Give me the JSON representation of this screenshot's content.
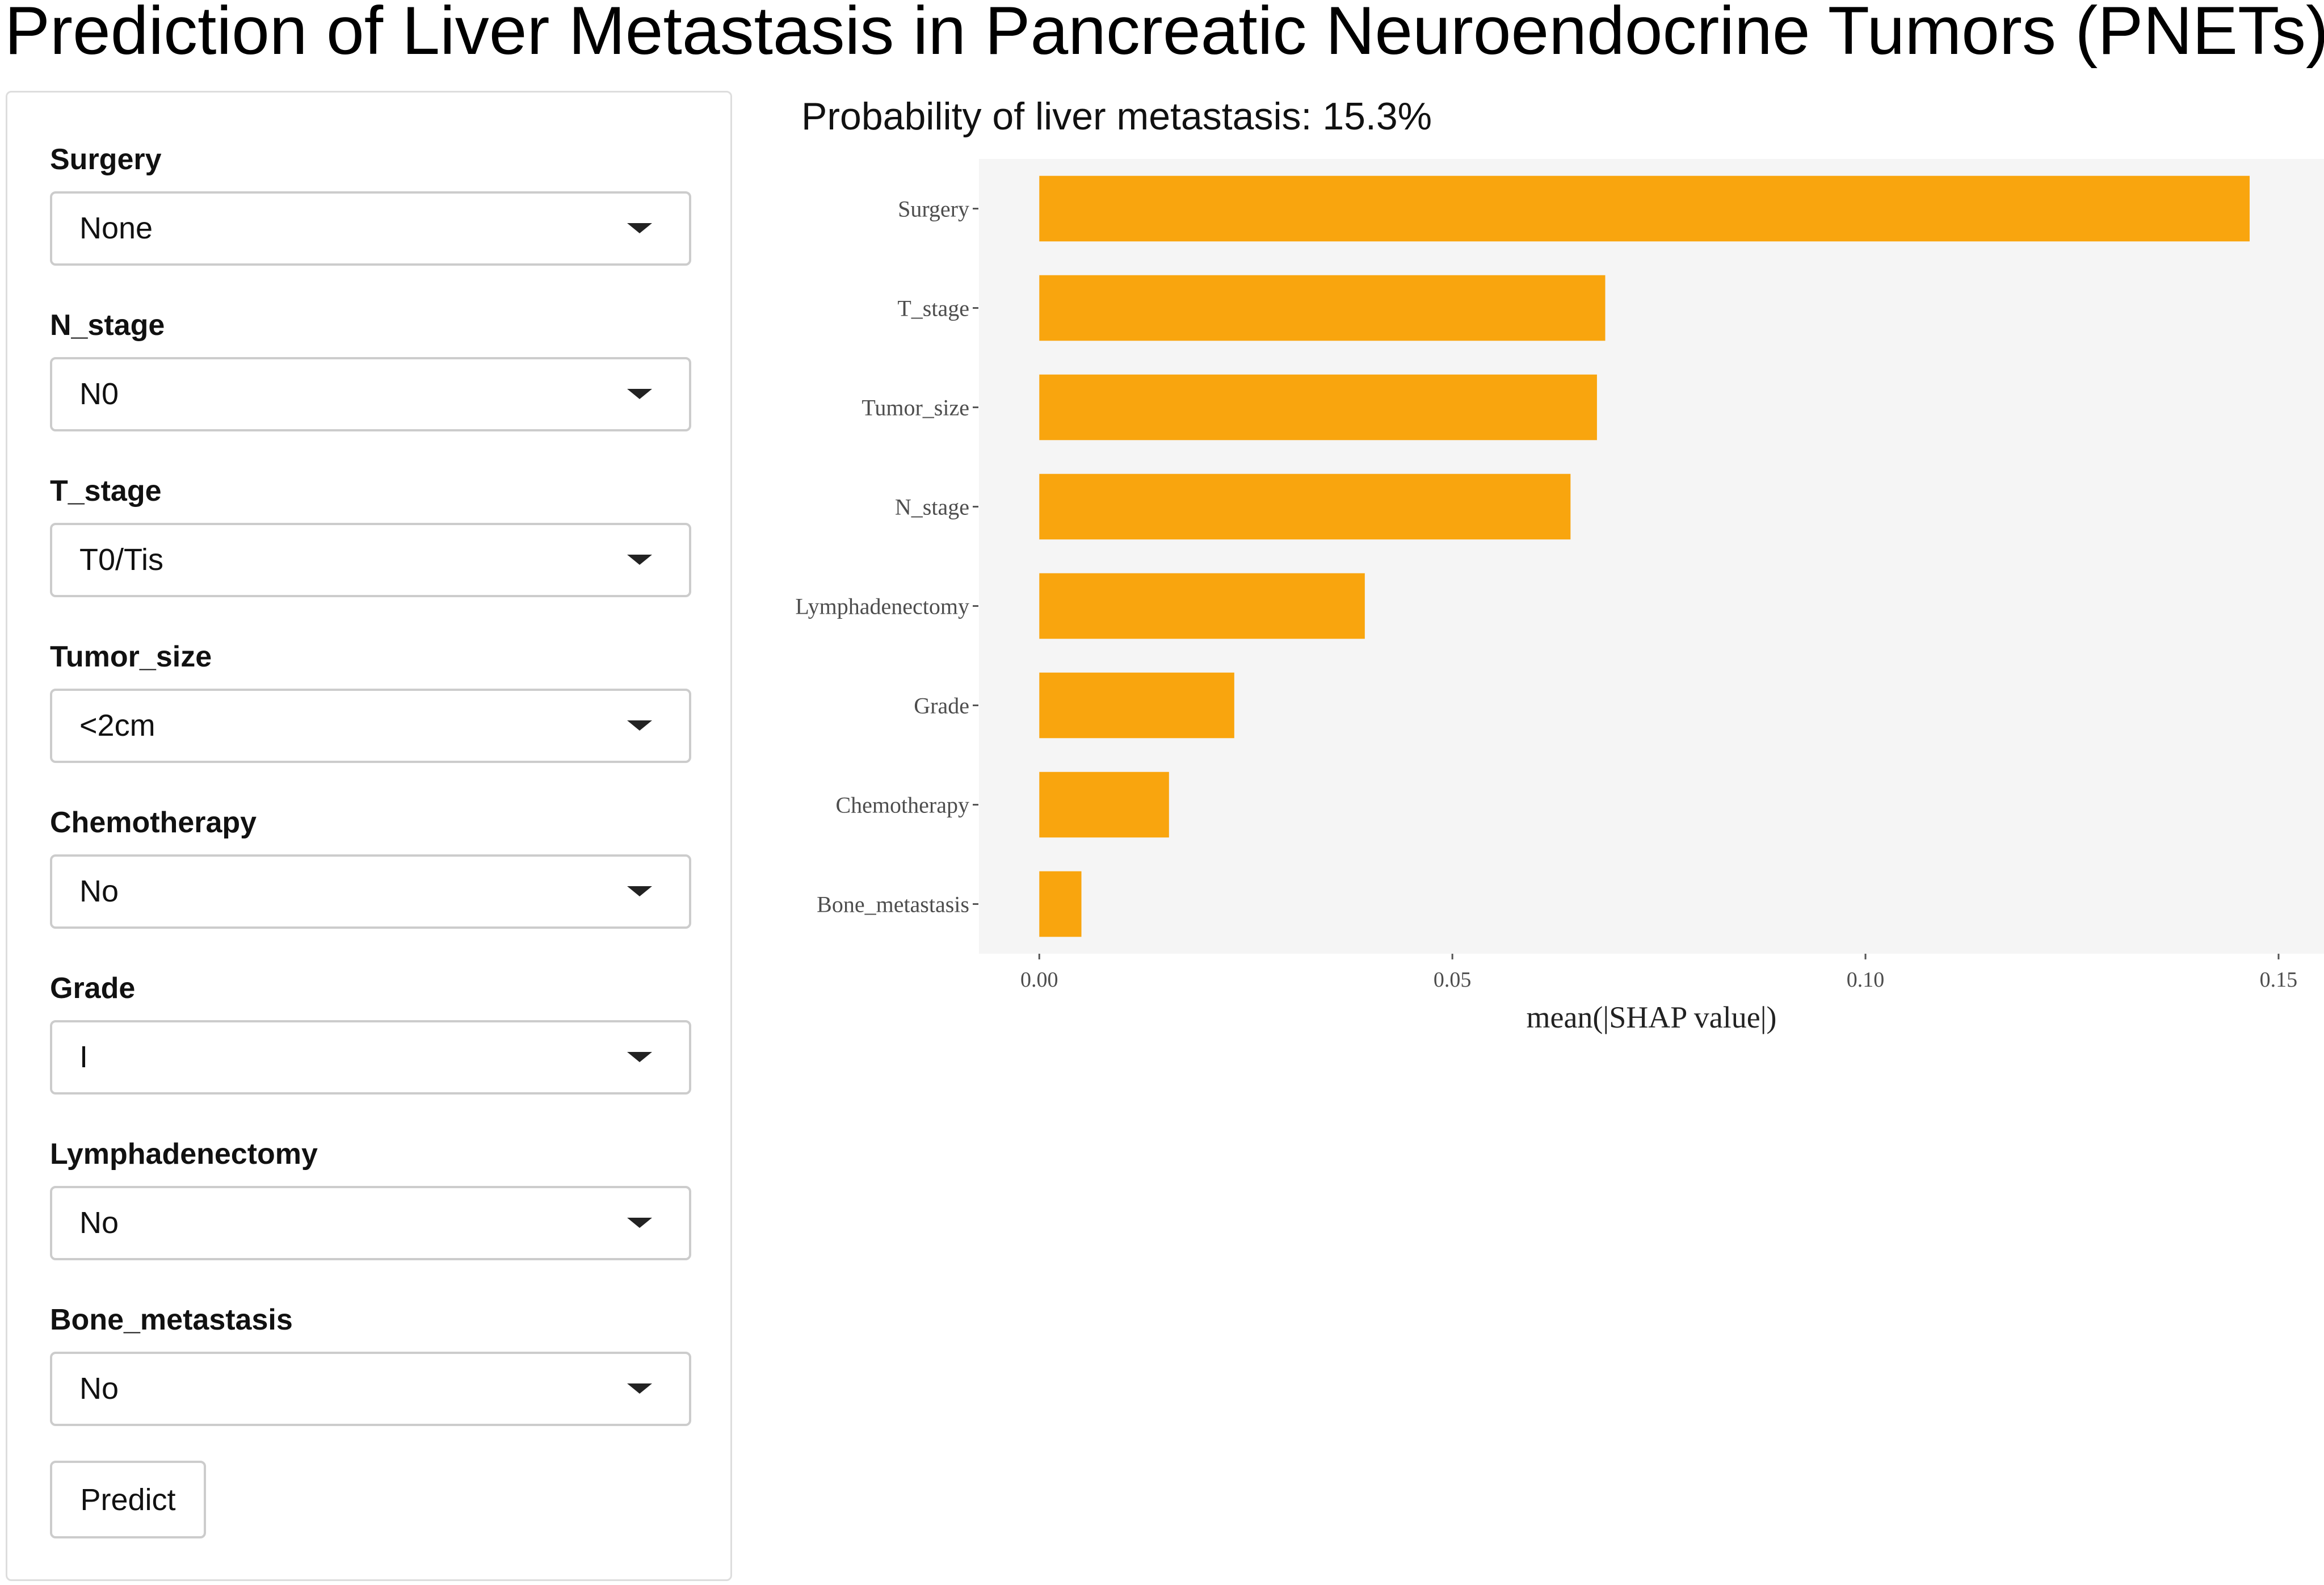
{
  "app": {
    "title": "Prediction of Liver Metastasis in Pancreatic Neuroendocrine Tumors (PNETs)"
  },
  "sidebar": {
    "fields": [
      {
        "label": "Surgery",
        "value": "None"
      },
      {
        "label": "N_stage",
        "value": "N0"
      },
      {
        "label": "T_stage",
        "value": "T0/Tis"
      },
      {
        "label": "Tumor_size",
        "value": "<2cm"
      },
      {
        "label": "Chemotherapy",
        "value": "No"
      },
      {
        "label": "Grade",
        "value": "I"
      },
      {
        "label": "Lymphadenectomy",
        "value": "No"
      },
      {
        "label": "Bone_metastasis",
        "value": "No"
      }
    ],
    "predict_label": "Predict"
  },
  "result": {
    "probability_text": "Probability of liver metastasis: 15.3%"
  },
  "chart_data": {
    "type": "bar",
    "orientation": "horizontal",
    "categories": [
      "Surgery",
      "T_stage",
      "Tumor_size",
      "N_stage",
      "Lymphadenectomy",
      "Grade",
      "Chemotherapy",
      "Bone_metastasis"
    ],
    "values": [
      0.1465,
      0.0685,
      0.0675,
      0.0643,
      0.0394,
      0.0236,
      0.0157,
      0.0051
    ],
    "xlabel": "mean(|SHAP value|)",
    "ylabel": "",
    "xlim": [
      -0.0073,
      0.1555
    ],
    "xticks": [
      0.0,
      0.05,
      0.1,
      0.15
    ],
    "xtick_labels": [
      "0.00",
      "0.05",
      "0.10",
      "0.15"
    ],
    "bar_color": "#F9A50E",
    "panel_color": "#F5F5F5",
    "grid": false
  }
}
